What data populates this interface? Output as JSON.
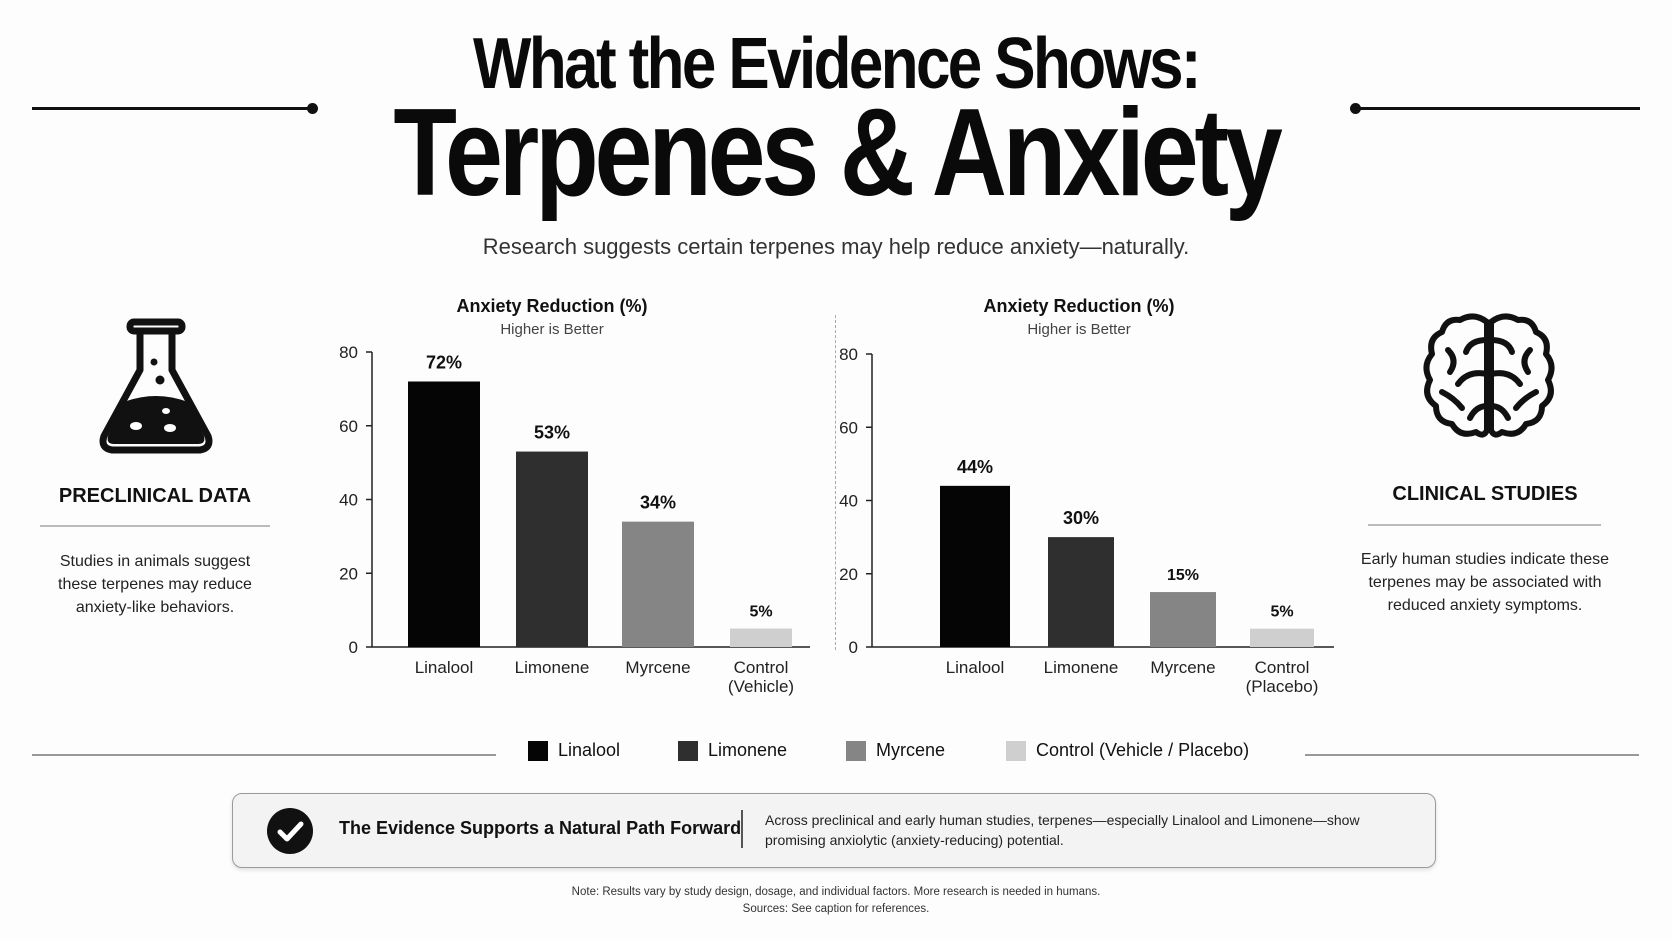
{
  "header": {
    "title_line1": "What the Evidence Shows:",
    "title_line2": "Terpenes & Anxiety",
    "subtitle": "Research suggests certain terpenes may help reduce anxiety—naturally."
  },
  "left_panel": {
    "icon": "flask-icon",
    "title": "PRECLINICAL DATA",
    "text": "Studies in animals suggest these terpenes may reduce anxiety-like behaviors."
  },
  "right_panel": {
    "icon": "brain-icon",
    "title": "CLINICAL STUDIES",
    "text": "Early human studies indicate these terpenes may be associated with reduced anxiety symptoms."
  },
  "chart_data": [
    {
      "type": "bar",
      "title": "Anxiety Reduction (%)",
      "subtitle": "Higher is Better",
      "categories": [
        "Linalool",
        "Limonene",
        "Myrcene",
        "Control (Vehicle)"
      ],
      "values": [
        72,
        53,
        34,
        5
      ],
      "value_labels": [
        "72%",
        "53%",
        "34%",
        "5%"
      ],
      "ylim": [
        0,
        80
      ],
      "yticks": [
        0,
        20,
        40,
        60,
        80
      ],
      "grid": false
    },
    {
      "type": "bar",
      "title": "Anxiety Reduction (%)",
      "subtitle": "Higher is Better",
      "categories": [
        "Linalool",
        "Limonene",
        "Myrcene",
        "Control (Placebo)"
      ],
      "values": [
        44,
        30,
        15,
        5
      ],
      "value_labels": [
        "44%",
        "30%",
        "15%",
        "5%"
      ],
      "ylim": [
        0,
        80
      ],
      "yticks": [
        0,
        20,
        40,
        60,
        80
      ],
      "grid": false
    }
  ],
  "colors": {
    "linalool": "#050505",
    "limonene": "#2f2f2f",
    "myrcene": "#858585",
    "control": "#cfcfcf"
  },
  "legend": [
    {
      "label": "Linalool",
      "color": "#050505"
    },
    {
      "label": "Limonene",
      "color": "#2f2f2f"
    },
    {
      "label": "Myrcene",
      "color": "#858585"
    },
    {
      "label": "Control (Vehicle / Placebo)",
      "color": "#cfcfcf"
    }
  ],
  "callout": {
    "icon": "checkmark-icon",
    "title": "The Evidence Supports a Natural Path Forward",
    "text": "Across preclinical and early human studies, terpenes—especially Linalool and Limonene—show promising anxiolytic (anxiety-reducing) potential."
  },
  "footer": {
    "note": "Note: Results vary by study design, dosage, and individual factors. More research is needed in humans.",
    "sources": "Sources: See caption for references."
  }
}
